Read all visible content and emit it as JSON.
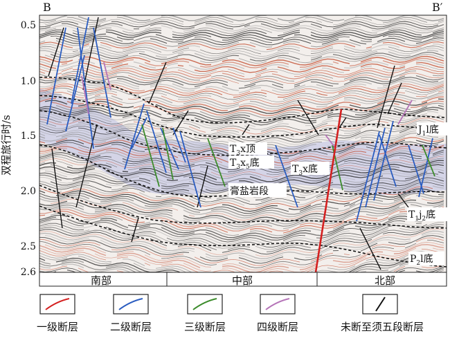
{
  "profile": {
    "start_label": "B",
    "end_label": "B′"
  },
  "y_axis": {
    "label": "双程旅行时/s",
    "ticks": [
      "0.5",
      "1.0",
      "1.5",
      "2.0",
      "2.5",
      "2.6"
    ]
  },
  "regions": [
    "南部",
    "中部",
    "北部"
  ],
  "horizons": [
    {
      "id": "j1",
      "base": "J",
      "sub": "1",
      "after": "l底"
    },
    {
      "id": "t3xtop",
      "base": "T",
      "sub": "3",
      "after": "x顶"
    },
    {
      "id": "t3x5",
      "base": "T",
      "sub": "3",
      "mid": "x",
      "sub2": "5",
      "after": "底"
    },
    {
      "id": "t3xbase",
      "base": "T",
      "sub": "3",
      "after": "x底"
    },
    {
      "id": "salt",
      "text": "膏盐岩段"
    },
    {
      "id": "t1j2",
      "base": "T",
      "sub": "1",
      "mid": "j",
      "sub2": "2",
      "after": "底"
    },
    {
      "id": "p2l",
      "base": "P",
      "sub": "2",
      "after": "l底"
    }
  ],
  "legend": [
    {
      "label": "一级断层",
      "color": "#d42020"
    },
    {
      "label": "二级断层",
      "color": "#2a5cc0"
    },
    {
      "label": "三级断层",
      "color": "#3c8c2c"
    },
    {
      "label": "四级断层",
      "color": "#b574b8"
    },
    {
      "label": "未断至须五段断层",
      "color": "#111111"
    }
  ]
}
